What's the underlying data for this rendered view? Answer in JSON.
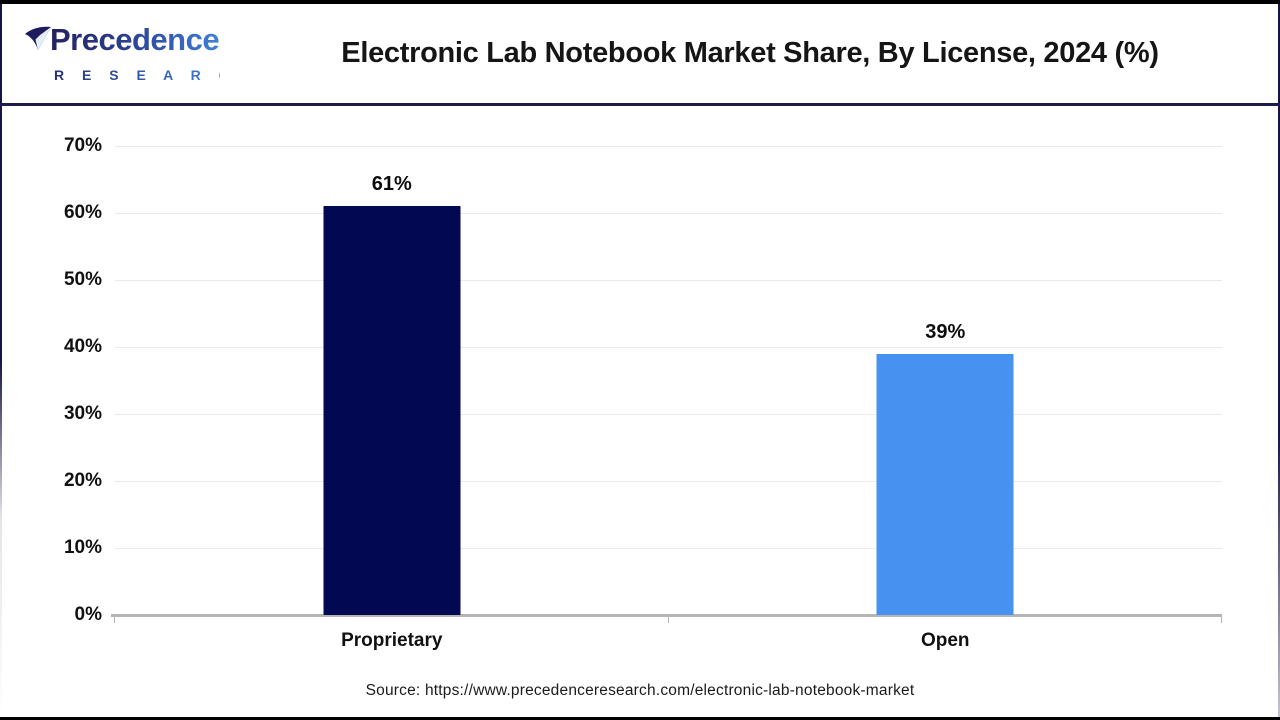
{
  "header": {
    "logo": {
      "name": "Precedence",
      "subname": "R E S E A R C H"
    },
    "title": "Electronic Lab Notebook Market Share, By License, 2024 (%)"
  },
  "chart_data": {
    "type": "bar",
    "title": "Electronic Lab Notebook Market Share, By License, 2024 (%)",
    "categories": [
      "Proprietary",
      "Open"
    ],
    "values": [
      61,
      39
    ],
    "value_labels": [
      "61%",
      "39%"
    ],
    "bar_colors": [
      "#030852",
      "#4791f0"
    ],
    "ylim": [
      0,
      70
    ],
    "yticks": [
      "70%",
      "60%",
      "50%",
      "40%",
      "30%",
      "20%",
      "10%",
      "0%"
    ],
    "xlabel": "",
    "ylabel": "",
    "grid": true,
    "legend": false,
    "axis_color": "#b5b5b5",
    "grid_color": "#eaeaea"
  },
  "footer": {
    "source": "Source: https://www.precedenceresearch.com/electronic-lab-notebook-market"
  }
}
